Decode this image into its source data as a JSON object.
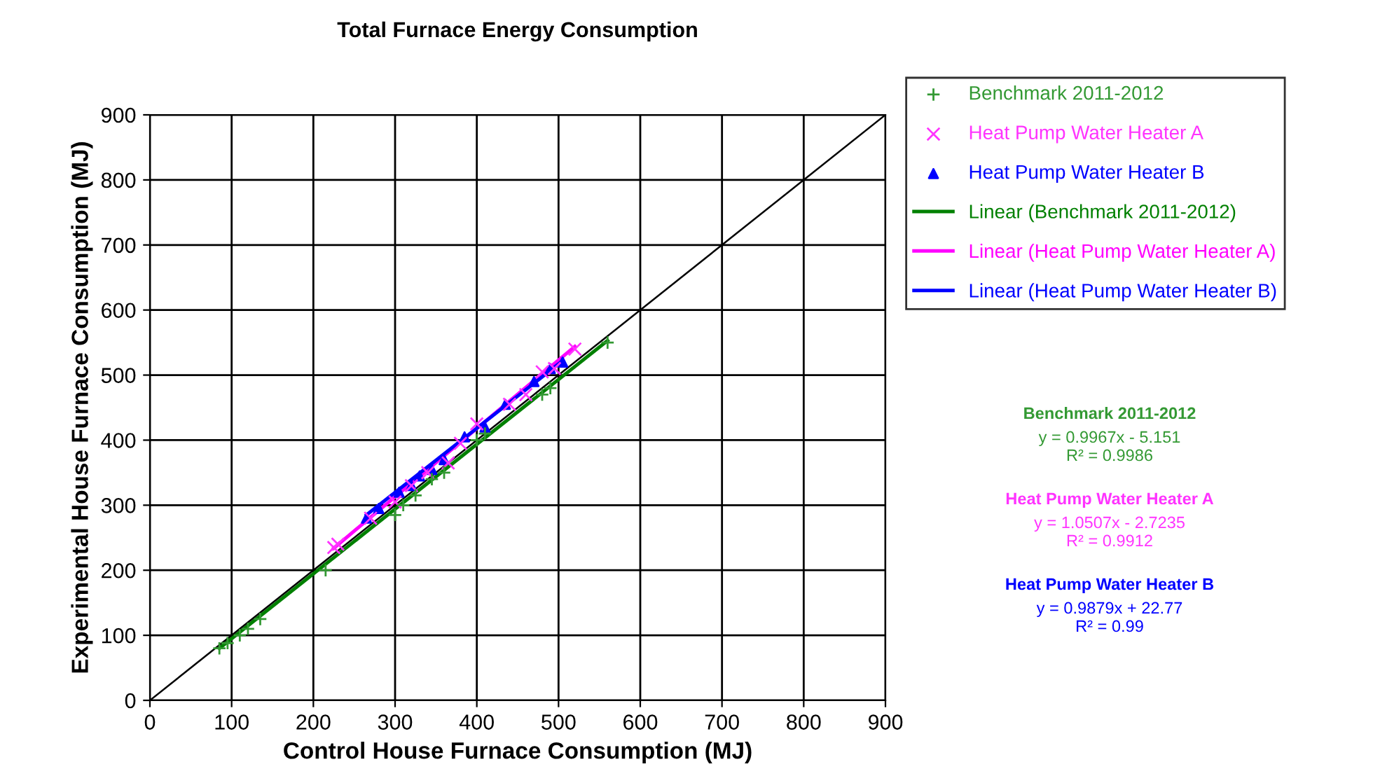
{
  "chart_data": {
    "type": "scatter",
    "title": "Total Furnace Energy Consumption",
    "xlabel": "Control House Furnace Consumption (MJ)",
    "ylabel": "Experimental House Furnace Consumption (MJ)",
    "xlim": [
      0,
      900
    ],
    "ylim": [
      0,
      900
    ],
    "xticks": [
      0,
      100,
      200,
      300,
      400,
      500,
      600,
      700,
      800,
      900
    ],
    "yticks": [
      0,
      100,
      200,
      300,
      400,
      500,
      600,
      700,
      800,
      900
    ],
    "grid": true,
    "legend": "right",
    "series": [
      {
        "name": "Benchmark 2011-2012",
        "marker": "cross",
        "color": "#339933",
        "x": [
          85,
          95,
          110,
          120,
          135,
          215,
          300,
          310,
          325,
          345,
          360,
          400,
          410,
          480,
          490,
          560
        ],
        "values": [
          80,
          88,
          100,
          110,
          125,
          200,
          285,
          300,
          315,
          340,
          350,
          400,
          410,
          470,
          480,
          550
        ]
      },
      {
        "name": "Heat Pump Water Heater A",
        "marker": "x",
        "color": "#ff33ff",
        "x": [
          225,
          230,
          270,
          300,
          320,
          340,
          365,
          380,
          400,
          440,
          460,
          480,
          495,
          520
        ],
        "values": [
          235,
          240,
          280,
          305,
          330,
          350,
          365,
          395,
          425,
          455,
          470,
          505,
          510,
          540
        ]
      },
      {
        "name": "Heat Pump Water Heater B",
        "marker": "triangle",
        "color": "#0000ff",
        "x": [
          265,
          280,
          305,
          320,
          330,
          345,
          360,
          385,
          410,
          435,
          470,
          490,
          505
        ],
        "values": [
          280,
          295,
          320,
          330,
          345,
          355,
          370,
          405,
          420,
          455,
          490,
          510,
          520
        ]
      },
      {
        "name": "Linear (Benchmark 2011-2012)",
        "type": "line",
        "color": "#008000",
        "x": [
          85,
          560
        ],
        "values": [
          80,
          553
        ]
      },
      {
        "name": "Linear (Heat Pump Water Heater A)",
        "type": "line",
        "color": "#ff00ff",
        "x": [
          225,
          520
        ],
        "values": [
          234,
          544
        ]
      },
      {
        "name": "Linear (Heat Pump Water Heater B)",
        "type": "line",
        "color": "#0000ff",
        "x": [
          265,
          505
        ],
        "values": [
          285,
          522
        ]
      },
      {
        "type": "line",
        "color": "#000000",
        "x": [
          0,
          900
        ],
        "values": [
          0,
          900
        ]
      }
    ],
    "annotations": [
      "Benchmark 2011-2012",
      "y = 0.9967x - 5.151",
      "R² = 0.9986",
      "Heat Pump Water Heater A",
      "y = 1.0507x - 2.7235",
      "R² = 0.9912",
      "Heat Pump Water Heater B",
      "y = 0.9879x + 22.77",
      "R² = 0.99"
    ]
  }
}
